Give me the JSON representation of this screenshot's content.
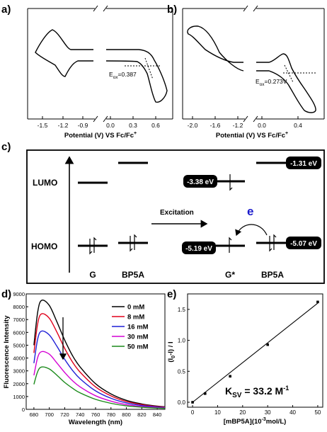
{
  "panels": {
    "a": {
      "label": "a)",
      "ticks": [
        "-1.5",
        "-1.2",
        "-0.9",
        "0.0",
        "0.3",
        "0.6"
      ],
      "xlabel": "Potential (V) VS Fc/Fc",
      "xlabel_sup": "+",
      "annotation_prefix": "E",
      "annotation_sub": "ox",
      "annotation_value": "=0.387"
    },
    "b": {
      "label": "b)",
      "ticks": [
        "-2.0",
        "-1.6",
        "-1.2",
        "0.0",
        "0.4"
      ],
      "xlabel": "Potential (V) VS Fc/Fc",
      "xlabel_sup": "+",
      "annotation_prefix": "E",
      "annotation_sub": "ox",
      "annotation_value": "=0.273V"
    },
    "c": {
      "label": "c)",
      "lumo": "LUMO",
      "homo": "HOMO",
      "excitation": "Excitation",
      "electron": "e",
      "g_label": "G",
      "bp5a_label": "BP5A",
      "gstar_label": "G*",
      "bp5a_label2": "BP5A",
      "energies": [
        "-1.31 eV",
        "-3.38 eV",
        "-5.19 eV",
        "-5.07 eV"
      ]
    },
    "d": {
      "label": "d)",
      "ylabel": "Fluorescence Intensity",
      "xlabel": "Wavelength (nm)",
      "yticks": [
        "0",
        "1000",
        "2000",
        "3000",
        "4000",
        "5000",
        "6000",
        "7000",
        "8000",
        "9000"
      ],
      "xticks": [
        "680",
        "700",
        "720",
        "740",
        "760",
        "780",
        "800",
        "820",
        "840"
      ],
      "legend": [
        "0 mM",
        "8 mM",
        "16 mM",
        "30 mM",
        "50 mM"
      ],
      "colors": [
        "#000000",
        "#e0001b",
        "#1f1fd6",
        "#d400d4",
        "#1a8a1a"
      ]
    },
    "e": {
      "label": "e)",
      "ylabel": "(I",
      "ylabel_sub": "0",
      "ylabel_rest": "-I) / I",
      "xlabel": "[mBP5A](10",
      "xlabel_sup": "-3",
      "xlabel_rest": "mol/L)",
      "yticks": [
        "0.0",
        "0.5",
        "1.0",
        "1.5"
      ],
      "xticks": [
        "0",
        "10",
        "20",
        "30",
        "40",
        "50"
      ],
      "ksv_prefix": "K",
      "ksv_sub": "SV",
      "ksv_value": " = 33.2 M",
      "ksv_sup": "-1"
    }
  },
  "chart_data": [
    {
      "type": "line",
      "panel": "d",
      "x": [
        680,
        685,
        690,
        700,
        710,
        720,
        730,
        740,
        760,
        780,
        800,
        820,
        840,
        850
      ],
      "series": [
        {
          "name": "0 mM",
          "values": [
            5000,
            7600,
            8500,
            8100,
            6800,
            5400,
            4200,
            3300,
            2000,
            1200,
            700,
            420,
            250,
            200
          ]
        },
        {
          "name": "8 mM",
          "values": [
            4400,
            6700,
            7450,
            7100,
            6000,
            4750,
            3700,
            2900,
            1750,
            1050,
            610,
            370,
            220,
            175
          ]
        },
        {
          "name": "16 mM",
          "values": [
            3600,
            5500,
            6100,
            5800,
            4900,
            3900,
            3050,
            2380,
            1440,
            860,
            500,
            300,
            180,
            145
          ]
        },
        {
          "name": "30 mM",
          "values": [
            2650,
            4050,
            4500,
            4300,
            3600,
            2870,
            2240,
            1750,
            1060,
            640,
            370,
            220,
            135,
            105
          ]
        },
        {
          "name": "50 mM",
          "values": [
            1950,
            2950,
            3300,
            3150,
            2650,
            2100,
            1650,
            1280,
            780,
            470,
            270,
            165,
            100,
            80
          ]
        }
      ],
      "xlabel": "Wavelength (nm)",
      "ylabel": "Fluorescence Intensity",
      "xlim": [
        670,
        850
      ],
      "ylim": [
        0,
        9000
      ],
      "legend": "top-right"
    },
    {
      "type": "scatter",
      "panel": "e",
      "x": [
        0,
        5,
        15,
        30,
        50
      ],
      "values": [
        0.0,
        0.14,
        0.42,
        0.93,
        1.62
      ],
      "fit": {
        "x": [
          0,
          50
        ],
        "y": [
          0.0,
          1.6
        ]
      },
      "xlabel": "[mBP5A](10-3mol/L)",
      "ylabel": "(I0-I) / I",
      "xlim": [
        -2,
        52
      ],
      "ylim": [
        -0.08,
        1.75
      ]
    }
  ]
}
